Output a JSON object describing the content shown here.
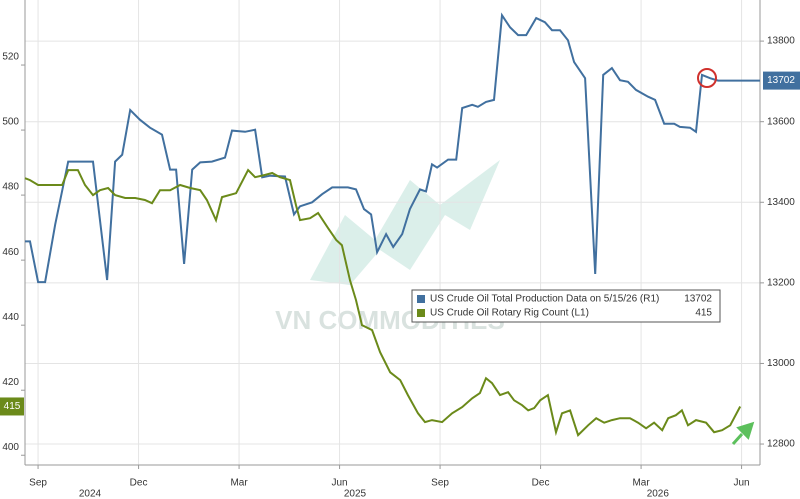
{
  "chart_data": {
    "type": "line",
    "watermark": "VN COMMODITIES",
    "xlim": [
      -0.39,
      21.55
    ],
    "xticks": [
      {
        "value": 0,
        "label": "Sep"
      },
      {
        "value": 3,
        "label": "Dec"
      },
      {
        "value": 6,
        "label": "Mar"
      },
      {
        "value": 9,
        "label": "Jun"
      },
      {
        "value": 12,
        "label": "Sep"
      },
      {
        "value": 15,
        "label": "Dec"
      },
      {
        "value": 18,
        "label": "Mar"
      },
      {
        "value": 21,
        "label": "Jun"
      }
    ],
    "xticks2": [
      {
        "value": 1.55,
        "label": "2024"
      },
      {
        "value": 9.46,
        "label": "2025"
      },
      {
        "value": 18.5,
        "label": "2026"
      }
    ],
    "ylim": [
      397,
      540
    ],
    "yticks": [
      400,
      420,
      440,
      460,
      480,
      500,
      520
    ],
    "y2lim": [
      12748,
      13902
    ],
    "y2ticks": [
      12800,
      13000,
      13200,
      13400,
      13600,
      13800
    ],
    "grid": true,
    "series": [
      {
        "name": "US Crude Oil Total Production Data on 5/15/26 (R1)",
        "color": "#41709f",
        "axis": "y2",
        "x": [
          -0.39,
          -0.24,
          0,
          0.21,
          0.51,
          0.9,
          1.25,
          1.64,
          2.06,
          2.3,
          2.51,
          2.75,
          3.04,
          3.34,
          3.7,
          3.94,
          4.12,
          4.36,
          4.6,
          4.84,
          5.19,
          5.58,
          5.79,
          6.18,
          6.48,
          6.69,
          6.93,
          7.37,
          7.64,
          7.82,
          8.18,
          8.48,
          8.78,
          9.25,
          9.49,
          9.73,
          9.94,
          10.12,
          10.39,
          10.6,
          10.87,
          11.1,
          11.4,
          11.58,
          11.76,
          11.91,
          12.24,
          12.48,
          12.66,
          12.96,
          13.13,
          13.37,
          13.61,
          13.85,
          14.09,
          14.33,
          14.57,
          14.87,
          15.13,
          15.34,
          15.58,
          15.82,
          16,
          16.33,
          16.63,
          16.87,
          17.13,
          17.37,
          17.61,
          17.85,
          18.21,
          18.42,
          18.69,
          18.99,
          19.16,
          19.46,
          19.64,
          19.82,
          20.06,
          20.3,
          21.55
        ],
        "values": [
          13303,
          13303,
          13202,
          13202,
          13345,
          13501,
          13501,
          13501,
          13207,
          13501,
          13518,
          13629,
          13605,
          13585,
          13568,
          13481,
          13481,
          13247,
          13481,
          13499,
          13501,
          13511,
          13578,
          13575,
          13580,
          13462,
          13466,
          13464,
          13370,
          13390,
          13400,
          13420,
          13437,
          13437,
          13432,
          13383,
          13370,
          13276,
          13321,
          13289,
          13321,
          13383,
          13432,
          13427,
          13494,
          13486,
          13506,
          13506,
          13634,
          13642,
          13637,
          13649,
          13654,
          13864,
          13834,
          13815,
          13815,
          13857,
          13847,
          13827,
          13827,
          13802,
          13748,
          13708,
          13222,
          13716,
          13733,
          13703,
          13699,
          13679,
          13662,
          13654,
          13595,
          13595,
          13587,
          13585,
          13575,
          13716,
          13708,
          13702,
          13702
        ]
      },
      {
        "name": "US Crude Oil Rotary Rig Count (L1)",
        "color": "#6b8a1a",
        "axis": "y",
        "x": [
          -0.39,
          -0.24,
          0,
          0.36,
          0.72,
          0.9,
          1.19,
          1.4,
          1.64,
          1.85,
          2.09,
          2.3,
          2.6,
          2.9,
          3.19,
          3.4,
          3.64,
          3.94,
          4.24,
          4.54,
          4.84,
          5.04,
          5.31,
          5.49,
          5.91,
          6.27,
          6.48,
          6.78,
          6.99,
          7.22,
          7.52,
          7.7,
          7.82,
          8.12,
          8.36,
          8.66,
          8.9,
          9.07,
          9.31,
          9.49,
          9.67,
          9.97,
          10.21,
          10.51,
          10.81,
          11.04,
          11.34,
          11.55,
          11.76,
          12.06,
          12.36,
          12.66,
          12.96,
          13.19,
          13.37,
          13.55,
          13.79,
          14.03,
          14.21,
          14.45,
          14.63,
          14.81,
          14.99,
          15.22,
          15.46,
          15.64,
          15.88,
          16.12,
          16.42,
          16.66,
          16.9,
          17.13,
          17.37,
          17.67,
          17.91,
          18.15,
          18.39,
          18.63,
          18.81,
          19.04,
          19.22,
          19.4,
          19.64,
          19.94,
          20.18,
          20.42,
          20.66,
          20.96
        ],
        "values": [
          485.2,
          484.6,
          483.1,
          483.1,
          483.1,
          487.7,
          487.7,
          483.1,
          480,
          481.5,
          482.2,
          480,
          479.1,
          479.1,
          478.5,
          477.5,
          481.5,
          481.5,
          483.1,
          482.2,
          481.5,
          478.5,
          472.3,
          479.4,
          480.6,
          487.7,
          485.5,
          486.2,
          486.8,
          485.5,
          484.6,
          476.9,
          472.3,
          472.9,
          474.5,
          469.8,
          466.2,
          464.6,
          453.8,
          447.7,
          440,
          438.5,
          431.7,
          425.5,
          423.1,
          418.5,
          412.9,
          410.2,
          410.8,
          410.2,
          412.9,
          414.8,
          417.5,
          419.1,
          423.7,
          422.2,
          418.5,
          419.4,
          416.9,
          415.4,
          413.8,
          414.5,
          416.9,
          418.5,
          407.1,
          412.9,
          413.8,
          406.2,
          409.2,
          411.4,
          410,
          410.8,
          411.4,
          411.4,
          410,
          408.3,
          410,
          407.7,
          411.4,
          412.3,
          413.8,
          409.2,
          410.8,
          410,
          407.1,
          407.7,
          409.2,
          415
        ]
      }
    ]
  }
}
